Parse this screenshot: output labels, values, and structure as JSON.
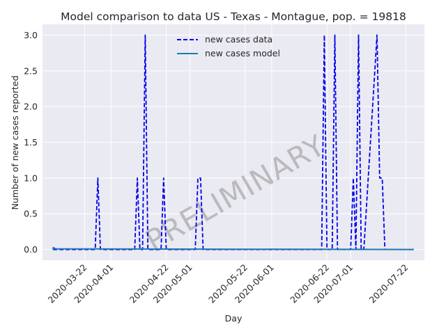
{
  "chart_data": {
    "type": "line",
    "title": "Model comparison to data US - Texas - Montague, pop. = 19818",
    "xlabel": "Day",
    "ylabel": "Number of new cases reported",
    "watermark": "PRELIMINARY",
    "x_start": "2020-03-10",
    "x_end": "2020-07-25",
    "xlim": [
      "2020-03-06",
      "2020-07-29"
    ],
    "ylim": [
      -0.15,
      3.15
    ],
    "yticks": [
      0.0,
      0.5,
      1.0,
      1.5,
      2.0,
      2.5,
      3.0
    ],
    "ytick_labels": [
      "0.0",
      "0.5",
      "1.0",
      "1.5",
      "2.0",
      "2.5",
      "3.0"
    ],
    "xticks": [
      "2020-03-22",
      "2020-04-01",
      "2020-04-22",
      "2020-05-01",
      "2020-05-22",
      "2020-06-01",
      "2020-06-22",
      "2020-07-01",
      "2020-07-22"
    ],
    "grid": true,
    "legend_position": "top-center",
    "series": [
      {
        "name": "new cases data",
        "style": "dashed",
        "color": "#0000ee",
        "x": [
          "2020-03-10",
          "2020-03-26",
          "2020-03-27",
          "2020-03-28",
          "2020-04-10",
          "2020-04-11",
          "2020-04-12",
          "2020-04-13",
          "2020-04-14",
          "2020-04-15",
          "2020-04-20",
          "2020-04-21",
          "2020-04-22",
          "2020-05-03",
          "2020-05-04",
          "2020-05-05",
          "2020-05-06",
          "2020-06-20",
          "2020-06-21",
          "2020-06-22",
          "2020-06-24",
          "2020-06-25",
          "2020-06-26",
          "2020-07-01",
          "2020-07-02",
          "2020-07-03",
          "2020-07-04",
          "2020-07-05",
          "2020-07-06",
          "2020-07-11",
          "2020-07-12",
          "2020-07-13",
          "2020-07-14",
          "2020-07-15",
          "2020-07-16",
          "2020-07-25"
        ],
        "values": [
          0,
          0,
          1,
          0,
          0,
          1,
          0,
          0,
          3,
          0,
          0,
          1,
          0,
          0,
          1,
          1,
          0,
          0,
          3,
          0,
          0,
          3,
          0,
          0,
          1,
          0,
          3,
          0,
          0,
          3,
          1,
          1,
          0,
          0,
          0,
          0
        ]
      },
      {
        "name": "new cases model",
        "style": "solid",
        "color": "#1f77b4",
        "x": [
          "2020-03-10",
          "2020-03-11",
          "2020-07-25"
        ],
        "values": [
          0.03,
          0.01,
          0.0
        ]
      }
    ]
  },
  "colors": {
    "plot_background": "#eaeaf2",
    "grid": "#ffffff",
    "text": "#262626"
  }
}
